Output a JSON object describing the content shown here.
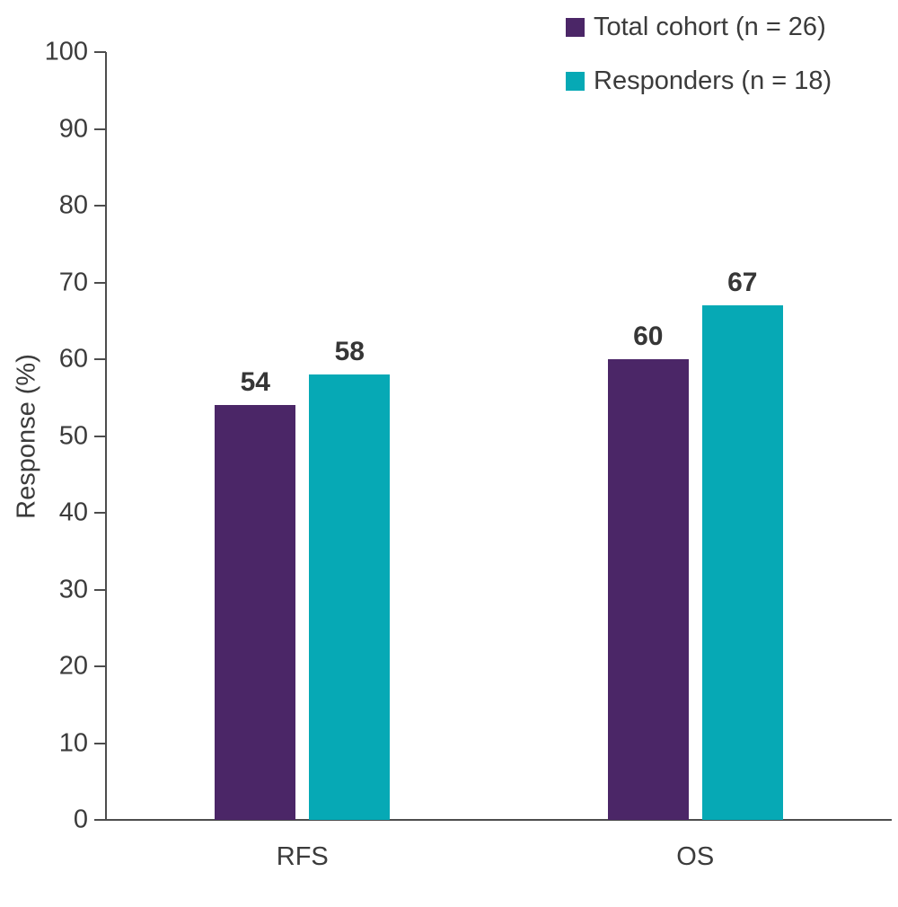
{
  "chart_data": {
    "type": "bar",
    "categories": [
      "RFS",
      "OS"
    ],
    "series": [
      {
        "name": "Total cohort (n = 26)",
        "color": "#4B2667",
        "values": [
          54,
          60
        ]
      },
      {
        "name": "Responders (n = 18)",
        "color": "#06A9B5",
        "values": [
          58,
          67
        ]
      }
    ],
    "title": "",
    "xlabel": "",
    "ylabel": "Response (%)",
    "ylim": [
      0,
      100
    ],
    "yticks": [
      0,
      10,
      20,
      30,
      40,
      50,
      60,
      70,
      80,
      90,
      100
    ],
    "grid": false,
    "legend_position": "top-right",
    "data_labels": true,
    "axis_color": "#4d4d4d",
    "text_color": "#3b3b3b"
  }
}
